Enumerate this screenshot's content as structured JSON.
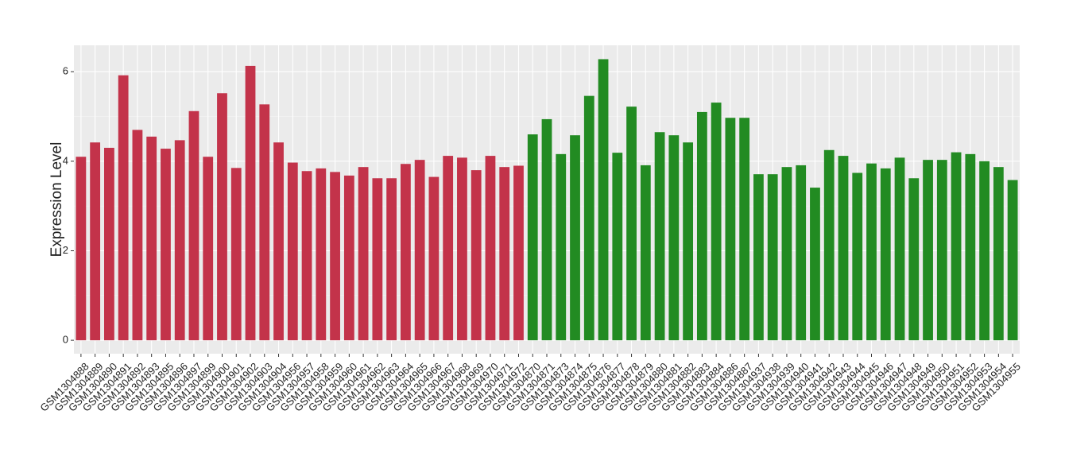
{
  "chart_data": {
    "type": "bar",
    "y_label": "Expression Level",
    "categories": [
      "GSM1304888",
      "GSM1304889",
      "GSM1304890",
      "GSM1304891",
      "GSM1304892",
      "GSM1304893",
      "GSM1304895",
      "GSM1304896",
      "GSM1304897",
      "GSM1304899",
      "GSM1304900",
      "GSM1304901",
      "GSM1304902",
      "GSM1304903",
      "GSM1304904",
      "GSM1304956",
      "GSM1304957",
      "GSM1304958",
      "GSM1304959",
      "GSM1304960",
      "GSM1304961",
      "GSM1304962",
      "GSM1304963",
      "GSM1304964",
      "GSM1304965",
      "GSM1304966",
      "GSM1304967",
      "GSM1304968",
      "GSM1304969",
      "GSM1304970",
      "GSM1304971",
      "GSM1304972",
      "GSM1304870",
      "GSM1304871",
      "GSM1304873",
      "GSM1304874",
      "GSM1304875",
      "GSM1304876",
      "GSM1304877",
      "GSM1304878",
      "GSM1304879",
      "GSM1304880",
      "GSM1304881",
      "GSM1304882",
      "GSM1304883",
      "GSM1304884",
      "GSM1304886",
      "GSM1304887",
      "GSM1304937",
      "GSM1304938",
      "GSM1304939",
      "GSM1304940",
      "GSM1304941",
      "GSM1304942",
      "GSM1304943",
      "GSM1304944",
      "GSM1304945",
      "GSM1304946",
      "GSM1304947",
      "GSM1304948",
      "GSM1304949",
      "GSM1304950",
      "GSM1304951",
      "GSM1304952",
      "GSM1304953",
      "GSM1304954",
      "GSM1304955"
    ],
    "values": [
      4.1,
      4.42,
      4.3,
      5.92,
      4.7,
      4.55,
      4.28,
      4.47,
      5.12,
      4.1,
      5.52,
      3.85,
      6.13,
      5.27,
      4.42,
      3.97,
      3.78,
      3.84,
      3.76,
      3.68,
      3.87,
      3.62,
      3.62,
      3.94,
      4.03,
      3.65,
      4.12,
      4.08,
      3.8,
      4.12,
      3.87,
      3.9,
      4.6,
      4.94,
      4.16,
      4.58,
      5.46,
      6.28,
      4.19,
      5.22,
      3.91,
      4.65,
      4.58,
      4.42,
      5.1,
      5.31,
      4.97,
      4.97,
      3.71,
      3.71,
      3.87,
      3.91,
      3.41,
      4.25,
      4.12,
      3.74,
      3.95,
      3.84,
      4.08,
      3.62,
      4.03,
      4.03,
      4.2,
      4.16,
      4.0,
      3.87,
      3.58
    ],
    "colors": [
      "#c3334a",
      "#c3334a",
      "#c3334a",
      "#c3334a",
      "#c3334a",
      "#c3334a",
      "#c3334a",
      "#c3334a",
      "#c3334a",
      "#c3334a",
      "#c3334a",
      "#c3334a",
      "#c3334a",
      "#c3334a",
      "#c3334a",
      "#c3334a",
      "#c3334a",
      "#c3334a",
      "#c3334a",
      "#c3334a",
      "#c3334a",
      "#c3334a",
      "#c3334a",
      "#c3334a",
      "#c3334a",
      "#c3334a",
      "#c3334a",
      "#c3334a",
      "#c3334a",
      "#c3334a",
      "#c3334a",
      "#c3334a",
      "#228b22",
      "#228b22",
      "#228b22",
      "#228b22",
      "#228b22",
      "#228b22",
      "#228b22",
      "#228b22",
      "#228b22",
      "#228b22",
      "#228b22",
      "#228b22",
      "#228b22",
      "#228b22",
      "#228b22",
      "#228b22",
      "#228b22",
      "#228b22",
      "#228b22",
      "#228b22",
      "#228b22",
      "#228b22",
      "#228b22",
      "#228b22",
      "#228b22",
      "#228b22",
      "#228b22",
      "#228b22",
      "#228b22",
      "#228b22",
      "#228b22",
      "#228b22",
      "#228b22",
      "#228b22",
      "#228b22"
    ],
    "ylim": [
      -0.3,
      6.59
    ],
    "yticks": [
      0,
      2,
      4,
      6
    ],
    "grid": true
  }
}
